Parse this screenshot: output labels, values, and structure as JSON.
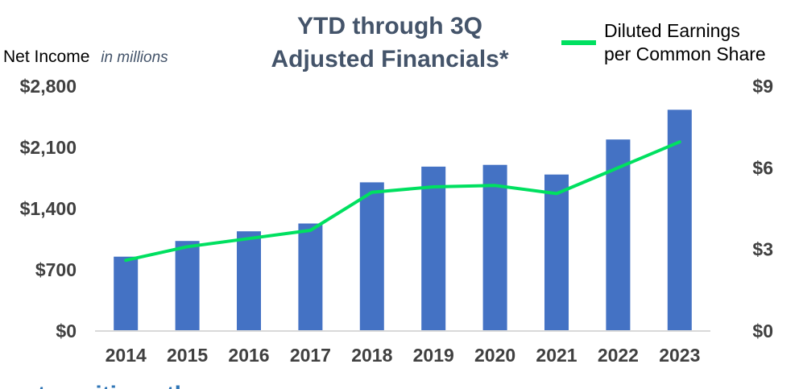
{
  "chart_data": {
    "type": "bar",
    "title_lines": [
      "YTD through 3Q",
      "Adjusted Financials*"
    ],
    "ylabel": "Net Income",
    "ylabel_unit": "in millions",
    "categories": [
      "2014",
      "2015",
      "2016",
      "2017",
      "2018",
      "2019",
      "2020",
      "2021",
      "2022",
      "2023"
    ],
    "series": [
      {
        "name": "Net Income",
        "kind": "bar",
        "axis": "left",
        "color": "#4472c4",
        "values": [
          850,
          1030,
          1140,
          1230,
          1700,
          1880,
          1900,
          1790,
          2190,
          2530
        ]
      },
      {
        "name": "Diluted Earnings per Common Share",
        "kind": "line",
        "axis": "right",
        "color": "#00e060",
        "values": [
          2.6,
          3.1,
          3.4,
          3.7,
          5.1,
          5.3,
          5.35,
          5.05,
          6.0,
          6.95
        ]
      }
    ],
    "legend": {
      "label_lines": [
        "Diluted Earnings",
        "per Common Share"
      ],
      "position": "top-right"
    },
    "y_left": {
      "ylim": [
        0,
        2800
      ],
      "ticks": [
        0,
        700,
        1400,
        2100,
        2800
      ],
      "tick_labels": [
        "$0",
        "$700",
        "$1,400",
        "$2,100",
        "$2,800"
      ]
    },
    "y_right": {
      "ylim": [
        0,
        9
      ],
      "ticks": [
        0,
        3,
        6,
        9
      ],
      "tick_labels": [
        "$0",
        "$3",
        "$6",
        "$9"
      ]
    },
    "grid": false
  },
  "footer_text": "st positions th"
}
